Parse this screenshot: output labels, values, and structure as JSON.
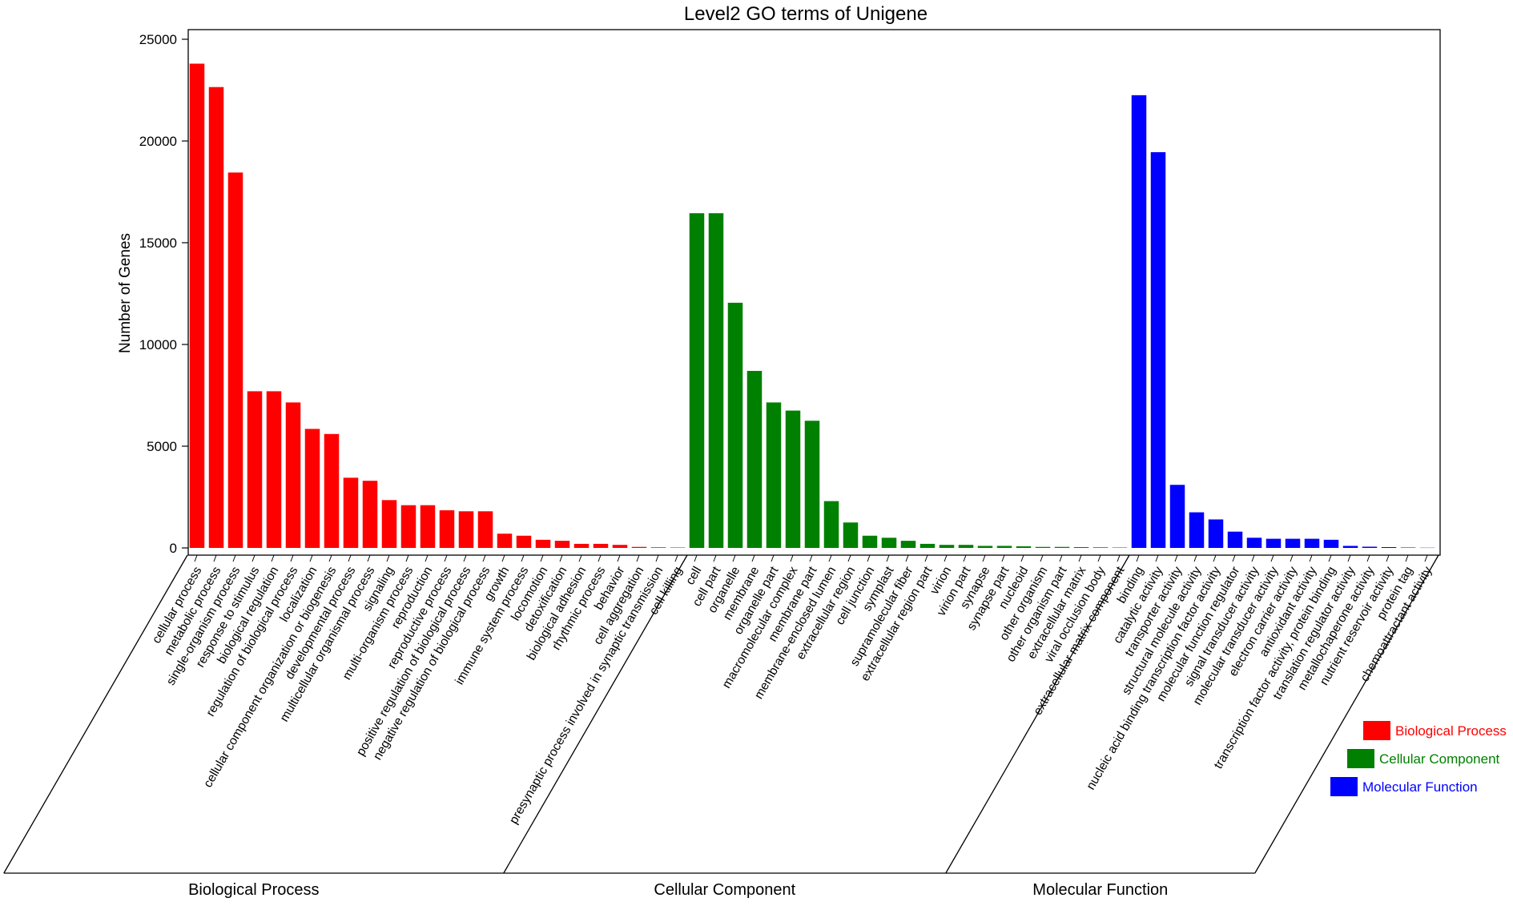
{
  "chart_data": {
    "type": "bar",
    "title": "Level2 GO terms of Unigene",
    "ylabel": "Number of Genes",
    "xlabel": "",
    "ylim": [
      0,
      25000
    ],
    "yticks": [
      0,
      5000,
      10000,
      15000,
      20000,
      25000
    ],
    "grid": false,
    "legend_position": "bottom-right",
    "groups": [
      {
        "name": "Biological Process",
        "color": "#ff0000",
        "categories": [
          "cellular process",
          "metabolic process",
          "single-organism process",
          "response to stimulus",
          "biological regulation",
          "regulation of biological process",
          "localization",
          "cellular component organization or biogenesis",
          "developmental process",
          "multicellular organismal process",
          "signaling",
          "multi-organism process",
          "reproduction",
          "reproductive process",
          "positive regulation of biological process",
          "negative regulation of biological process",
          "growth",
          "immune system process",
          "locomotion",
          "detoxification",
          "biological adhesion",
          "rhythmic process",
          "behavior",
          "cell aggregation",
          "presynaptic process involved in synaptic transmission",
          "cell killing"
        ],
        "values": [
          23800,
          22650,
          18450,
          7700,
          7700,
          7150,
          5850,
          5600,
          3450,
          3300,
          2350,
          2100,
          2100,
          1850,
          1800,
          1800,
          700,
          600,
          400,
          350,
          200,
          200,
          150,
          50,
          30,
          20
        ]
      },
      {
        "name": "Cellular Component",
        "color": "#008000",
        "categories": [
          "cell",
          "cell part",
          "organelle",
          "membrane",
          "organelle part",
          "macromolecular complex",
          "membrane part",
          "membrane-enclosed lumen",
          "extracellular region",
          "cell junction",
          "symplast",
          "supramolecular fiber",
          "extracellular region part",
          "virion",
          "virion part",
          "synapse",
          "synapse part",
          "nucleoid",
          "other organism",
          "other organism part",
          "extracellular matrix",
          "viral occlusion body",
          "extracellular matrix component"
        ],
        "values": [
          16450,
          16450,
          12050,
          8700,
          7150,
          6750,
          6250,
          2300,
          1250,
          600,
          500,
          350,
          200,
          150,
          150,
          100,
          100,
          80,
          50,
          50,
          40,
          30,
          20
        ]
      },
      {
        "name": "Molecular Function",
        "color": "#0000ff",
        "categories": [
          "binding",
          "catalytic activity",
          "transporter activity",
          "structural molecule activity",
          "nucleic acid binding transcription factor activity",
          "molecular function regulator",
          "signal transducer activity",
          "molecular transducer activity",
          "electron carrier activity",
          "antioxidant activity",
          "transcription factor activity, protein binding",
          "translation regulator activity",
          "metallochaperone activity",
          "nutrient reservoir activity",
          "protein tag",
          "chemoattractant activity"
        ],
        "values": [
          22250,
          19450,
          3100,
          1750,
          1400,
          800,
          500,
          450,
          450,
          450,
          400,
          100,
          60,
          40,
          20,
          10
        ]
      }
    ]
  }
}
